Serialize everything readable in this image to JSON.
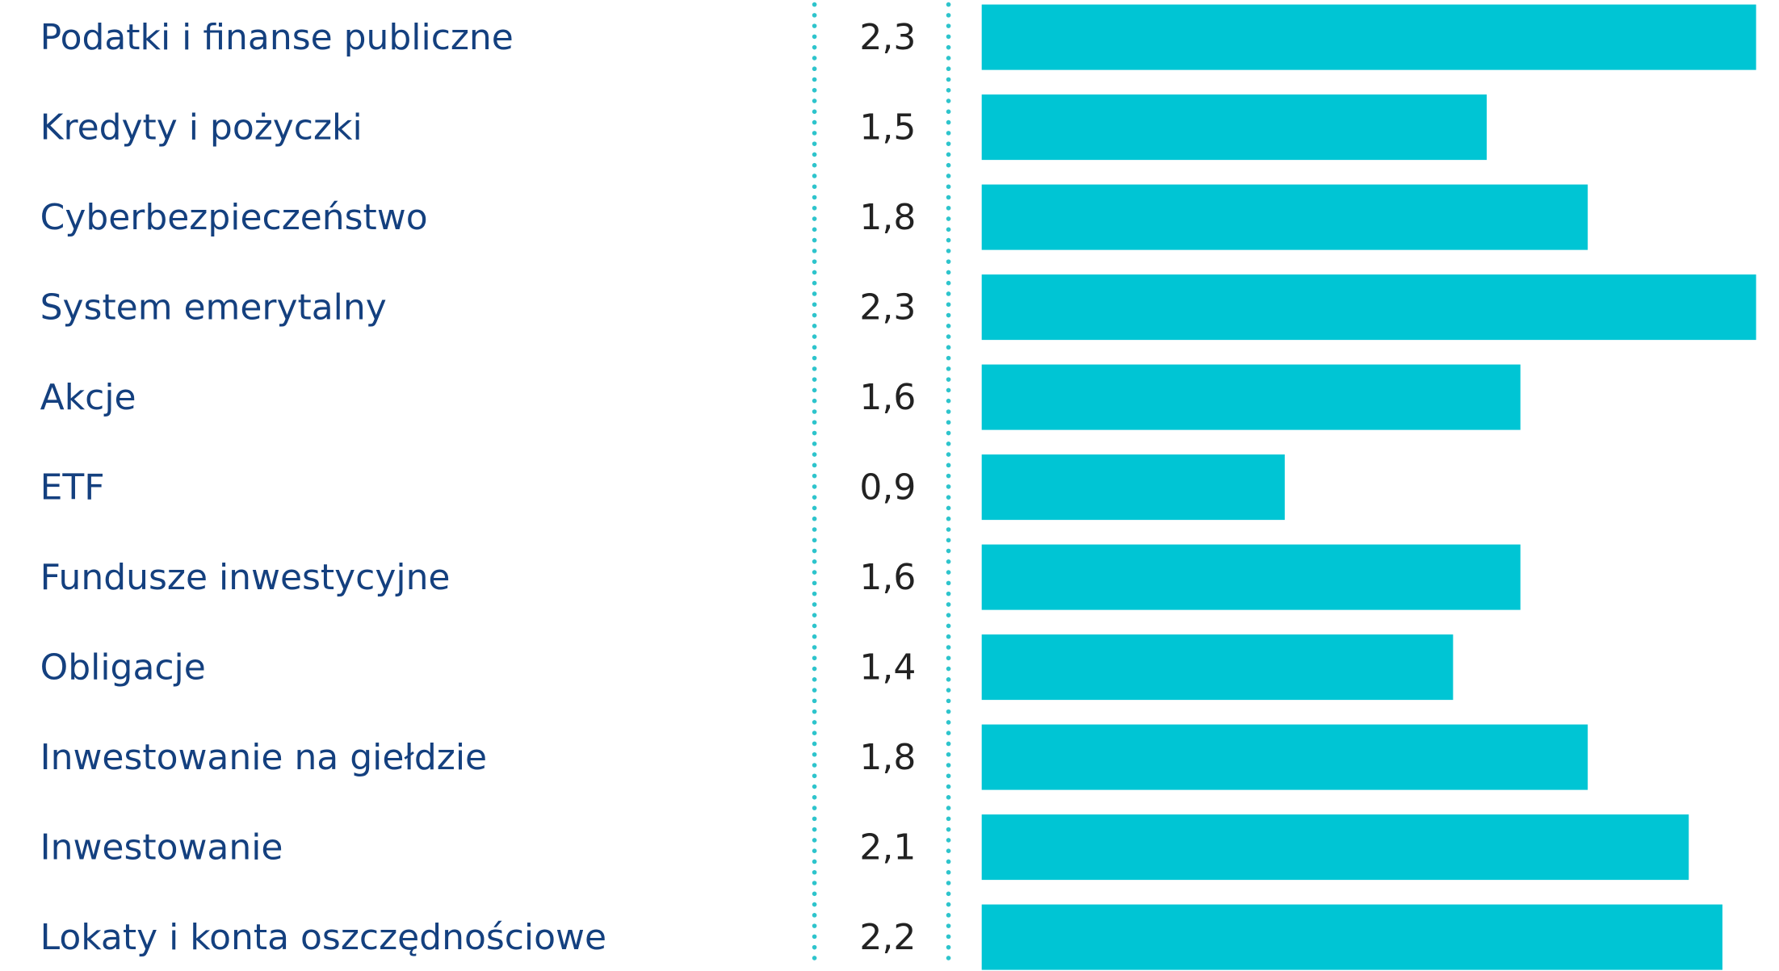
{
  "chart_data": {
    "type": "bar",
    "orientation": "horizontal",
    "categories": [
      "Podatki i finanse publiczne",
      "Kredyty i pożyczki",
      "Cyberbezpieczeństwo",
      "System emerytalny",
      "Akcje",
      "ETF",
      "Fundusze inwestycyjne",
      "Obligacje",
      "Inwestowanie na giełdzie",
      "Inwestowanie",
      "Lokaty i konta oszczędnościowe"
    ],
    "values": [
      2.3,
      1.5,
      1.8,
      2.3,
      1.6,
      0.9,
      1.6,
      1.4,
      1.8,
      2.1,
      2.2
    ],
    "value_labels": [
      "2,3",
      "1,5",
      "1,8",
      "2,3",
      "1,6",
      "0,9",
      "1,6",
      "1,4",
      "1,8",
      "2,1",
      "2,2"
    ],
    "color": "#00c5d4"
  }
}
